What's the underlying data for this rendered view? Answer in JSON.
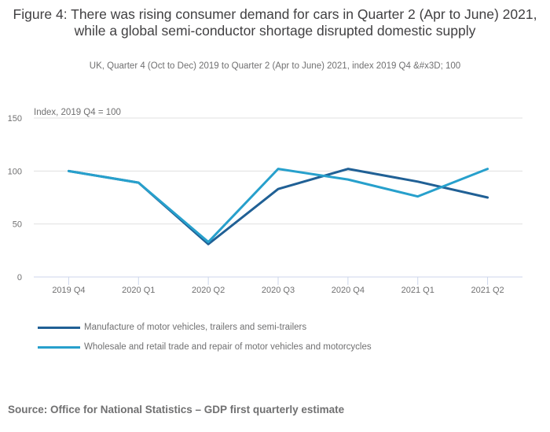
{
  "chart_data": {
    "type": "line",
    "title": "Figure 4: There was rising consumer demand for cars in Quarter 2 (Apr to June) 2021, while a global semi-conductor shortage disrupted domestic supply",
    "subtitle": "UK, Quarter 4 (Oct to Dec) 2019 to Quarter 2 (Apr to June) 2021, index 2019 Q4 &#x3D; 100",
    "ylabel": "Index, 2019 Q4 = 100",
    "xlabel": "",
    "ylim": [
      0,
      150
    ],
    "yticks": [
      0,
      50,
      100,
      150
    ],
    "grid": true,
    "legend_position": "bottom-left",
    "categories": [
      "2019 Q4",
      "2020 Q1",
      "2020 Q2",
      "2020 Q3",
      "2020 Q4",
      "2021 Q1",
      "2021 Q2"
    ],
    "series": [
      {
        "name": "Manufacture of motor vehicles, trailers and semi-trailers",
        "color": "#206095",
        "values": [
          100,
          89,
          31,
          83,
          102,
          90,
          75
        ]
      },
      {
        "name": "Wholesale and retail trade and repair of motor vehicles and motorcycles",
        "color": "#27a0cc",
        "values": [
          100,
          89,
          33,
          102,
          92,
          76,
          102
        ]
      }
    ]
  },
  "source": "Source: Office for National Statistics – GDP first quarterly estimate"
}
